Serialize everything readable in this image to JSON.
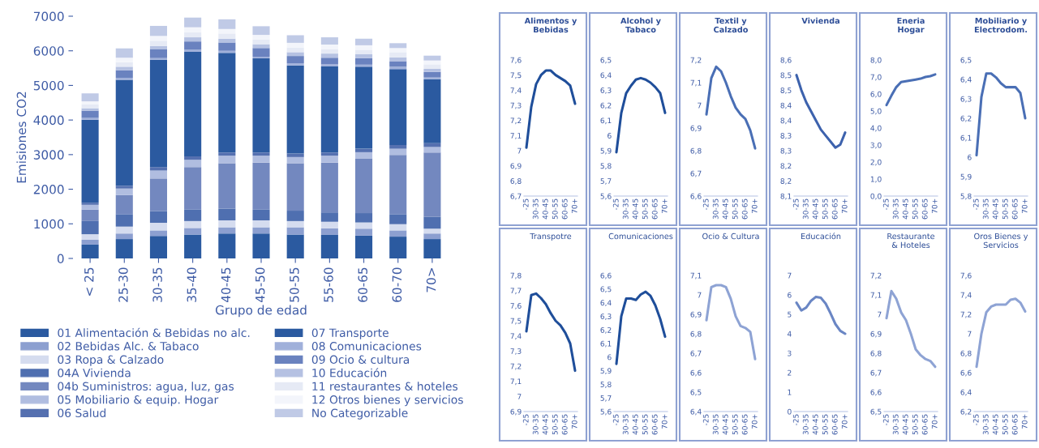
{
  "chart_data": [
    {
      "type": "bar",
      "stacked": true,
      "xlabel": "Grupo de edad",
      "ylabel": "Emisiones CO2",
      "legend": "bottom",
      "grid": false,
      "categories": [
        "< 25",
        "25-30",
        "30-35",
        "35-40",
        "40-45",
        "45-50",
        "50-55",
        "55-60",
        "60-65",
        "60-70",
        "70>"
      ],
      "ylim": [
        0,
        7000
      ],
      "yticks": [
        0,
        1000,
        2000,
        3000,
        4000,
        5000,
        6000,
        7000
      ],
      "series": [
        {
          "name": "01 Alimentación & Bebidas no alc.",
          "color": "#2b5aa0",
          "values": [
            400,
            560,
            650,
            690,
            720,
            720,
            690,
            680,
            660,
            630,
            560
          ]
        },
        {
          "name": "02 Bebidas Alc. & Tabaco",
          "color": "#8c9fd0",
          "values": [
            140,
            160,
            160,
            190,
            180,
            180,
            210,
            190,
            200,
            180,
            160
          ]
        },
        {
          "name": "03 Ropa & Calzado",
          "color": "#d5dcef",
          "values": [
            160,
            200,
            220,
            200,
            200,
            200,
            180,
            190,
            180,
            180,
            140
          ]
        },
        {
          "name": "04A Vivienda",
          "color": "#4f6fb0",
          "values": [
            380,
            360,
            340,
            340,
            340,
            320,
            300,
            270,
            270,
            290,
            340
          ]
        },
        {
          "name": "04b Suministros: agua, luz, gas",
          "color": "#7388bf",
          "values": [
            330,
            550,
            940,
            1220,
            1310,
            1350,
            1370,
            1440,
            1580,
            1710,
            1860
          ]
        },
        {
          "name": "05 Mobiliario & equip. Hogar",
          "color": "#b0bde0",
          "values": [
            140,
            190,
            230,
            210,
            220,
            200,
            180,
            200,
            180,
            180,
            160
          ]
        },
        {
          "name": "06 Salud",
          "color": "#5570b0",
          "values": [
            60,
            80,
            100,
            100,
            90,
            90,
            100,
            90,
            100,
            110,
            110
          ]
        },
        {
          "name": "07 Transporte",
          "color": "#2b5aa0",
          "values": [
            2400,
            3060,
            3100,
            3020,
            2880,
            2720,
            2550,
            2490,
            2370,
            2190,
            1850
          ]
        },
        {
          "name": "08 Comunicaciones",
          "color": "#a0b0da",
          "values": [
            50,
            60,
            50,
            60,
            60,
            50,
            60,
            60,
            60,
            70,
            50
          ]
        },
        {
          "name": "09 Ocio & cultura",
          "color": "#6a82bf",
          "values": [
            210,
            220,
            250,
            240,
            240,
            250,
            210,
            190,
            190,
            160,
            160
          ]
        },
        {
          "name": "10 Educación",
          "color": "#b5c1e2",
          "values": [
            70,
            100,
            100,
            120,
            110,
            110,
            110,
            120,
            110,
            110,
            90
          ]
        },
        {
          "name": "11 restaurantes & hoteles",
          "color": "#e6eaf5",
          "values": [
            110,
            130,
            150,
            150,
            150,
            140,
            130,
            120,
            130,
            150,
            130
          ]
        },
        {
          "name": "12 Otros bienes y servicios",
          "color": "#f3f5fb",
          "values": [
            90,
            130,
            140,
            140,
            130,
            130,
            140,
            140,
            130,
            120,
            110
          ]
        },
        {
          "name": "No Categorizable",
          "color": "#c0cae6",
          "values": [
            230,
            270,
            290,
            280,
            280,
            250,
            220,
            210,
            190,
            140,
            140
          ]
        }
      ]
    },
    {
      "type": "line",
      "title": "Alimentos y\nBebidas",
      "categories": [
        "-25",
        null,
        "30-35",
        null,
        "40-45",
        null,
        "50-55",
        null,
        "60-65",
        null,
        "70+"
      ],
      "ylim": [
        6.7,
        7.6
      ],
      "yticks": [
        {
          "value": 6.7,
          "label": "6,7"
        },
        {
          "value": 6.8,
          "label": "6,8"
        },
        {
          "value": 6.9,
          "label": "6,9"
        },
        {
          "value": 7.0,
          "label": "7"
        },
        {
          "value": 7.1,
          "label": "7,1"
        },
        {
          "value": 7.2,
          "label": "7,2"
        },
        {
          "value": 7.3,
          "label": "7,3"
        },
        {
          "value": 7.4,
          "label": "7,4"
        },
        {
          "value": 7.5,
          "label": "7,5"
        },
        {
          "value": 7.6,
          "label": "7,6"
        }
      ],
      "series": [
        {
          "color": "#1f4e9a",
          "values": [
            7.02,
            7.29,
            7.44,
            7.5,
            7.53,
            7.53,
            7.5,
            7.48,
            7.46,
            7.43,
            7.31
          ]
        }
      ]
    },
    {
      "type": "line",
      "title": "Alcohol y\nTabaco",
      "categories": [
        "-25",
        null,
        "30-35",
        null,
        "40-45",
        null,
        "50-55",
        null,
        "60-65",
        null,
        "70+"
      ],
      "ylim": [
        5.6,
        6.5
      ],
      "yticks": [
        {
          "value": 5.6,
          "label": "5,6"
        },
        {
          "value": 5.7,
          "label": "5,7"
        },
        {
          "value": 5.8,
          "label": "5,8"
        },
        {
          "value": 5.9,
          "label": "5,9"
        },
        {
          "value": 6.0,
          "label": "6"
        },
        {
          "value": 6.1,
          "label": "6,1"
        },
        {
          "value": 6.2,
          "label": "6,2"
        },
        {
          "value": 6.3,
          "label": "6,3"
        },
        {
          "value": 6.4,
          "label": "6,4"
        },
        {
          "value": 6.5,
          "label": "6,5"
        }
      ],
      "series": [
        {
          "color": "#1f4e9a",
          "values": [
            5.89,
            6.15,
            6.28,
            6.33,
            6.37,
            6.38,
            6.37,
            6.35,
            6.32,
            6.28,
            6.15
          ]
        }
      ]
    },
    {
      "type": "line",
      "title": "Textil y\nCalzado",
      "categories": [
        "-25",
        null,
        "30-35",
        null,
        "40-45",
        null,
        "50-55",
        null,
        "60-65",
        null,
        "70+"
      ],
      "ylim": [
        6.6,
        7.2
      ],
      "yticks": [
        {
          "value": 6.6,
          "label": "6,6"
        },
        {
          "value": 6.7,
          "label": "6,7"
        },
        {
          "value": 6.8,
          "label": "6,8"
        },
        {
          "value": 6.9,
          "label": "6,9"
        },
        {
          "value": 7.0,
          "label": "7"
        },
        {
          "value": 7.1,
          "label": "7,1"
        },
        {
          "value": 7.2,
          "label": "7,2"
        }
      ],
      "series": [
        {
          "color": "#4a6fb5",
          "values": [
            6.96,
            7.12,
            7.17,
            7.15,
            7.1,
            7.04,
            6.99,
            6.96,
            6.94,
            6.89,
            6.81
          ]
        }
      ]
    },
    {
      "type": "line",
      "title": "Vivienda",
      "categories": [
        "-25",
        null,
        "30-35",
        null,
        "40-45",
        null,
        "50-55",
        null,
        "60-65",
        null,
        "70+"
      ],
      "ylim": [
        8.15,
        8.6
      ],
      "yticks": [
        {
          "value": 8.15,
          "label": "8,1"
        },
        {
          "value": 8.2,
          "label": "8,2"
        },
        {
          "value": 8.25,
          "label": "8,2"
        },
        {
          "value": 8.3,
          "label": "8,3"
        },
        {
          "value": 8.35,
          "label": "8,3"
        },
        {
          "value": 8.4,
          "label": "8,4"
        },
        {
          "value": 8.45,
          "label": "8,4"
        },
        {
          "value": 8.5,
          "label": "8,5"
        },
        {
          "value": 8.55,
          "label": "8,5"
        },
        {
          "value": 8.6,
          "label": "8,6"
        }
      ],
      "series": [
        {
          "color": "#3d62ad",
          "values": [
            8.55,
            8.5,
            8.46,
            8.43,
            8.4,
            8.37,
            8.35,
            8.33,
            8.31,
            8.32,
            8.36
          ]
        }
      ]
    },
    {
      "type": "line",
      "title": "Eneria\nHogar",
      "categories": [
        "-25",
        null,
        "30-35",
        null,
        "40-45",
        null,
        "50-55",
        null,
        "60-65",
        null,
        "70+"
      ],
      "ylim": [
        0.0,
        8.0
      ],
      "yticks": [
        {
          "value": 0,
          "label": "0,0"
        },
        {
          "value": 1,
          "label": "1,0"
        },
        {
          "value": 2,
          "label": "2,0"
        },
        {
          "value": 3,
          "label": "3,0"
        },
        {
          "value": 4,
          "label": "4,0"
        },
        {
          "value": 5,
          "label": "5,0"
        },
        {
          "value": 6,
          "label": "6,0"
        },
        {
          "value": 7,
          "label": "7,0"
        },
        {
          "value": 8,
          "label": "8,0"
        }
      ],
      "series": [
        {
          "color": "#4a6fb5",
          "values": [
            5.35,
            5.9,
            6.4,
            6.7,
            6.75,
            6.8,
            6.85,
            6.9,
            7.0,
            7.05,
            7.15
          ]
        }
      ]
    },
    {
      "type": "line",
      "title": "Mobiliario y\nElectrodom.",
      "categories": [
        "-25",
        null,
        "30-35",
        null,
        "40-45",
        null,
        "50-55",
        null,
        "60-65",
        null,
        "70+"
      ],
      "ylim": [
        5.8,
        6.5
      ],
      "yticks": [
        {
          "value": 5.8,
          "label": "5,8"
        },
        {
          "value": 5.9,
          "label": "5,9"
        },
        {
          "value": 6.0,
          "label": "6"
        },
        {
          "value": 6.1,
          "label": "6,1"
        },
        {
          "value": 6.2,
          "label": "6,2"
        },
        {
          "value": 6.3,
          "label": "6,3"
        },
        {
          "value": 6.4,
          "label": "6,4"
        },
        {
          "value": 6.5,
          "label": "6,5"
        }
      ],
      "series": [
        {
          "color": "#4a6fb5",
          "values": [
            6.01,
            6.31,
            6.43,
            6.43,
            6.41,
            6.38,
            6.36,
            6.36,
            6.36,
            6.33,
            6.2
          ]
        }
      ]
    },
    {
      "type": "line",
      "title": "Transpotre",
      "categories": [
        "-25",
        null,
        "30-35",
        null,
        "40-45",
        null,
        "50-55",
        null,
        "60-65",
        null,
        "70+"
      ],
      "ylim": [
        6.9,
        7.8
      ],
      "yticks": [
        {
          "value": 6.9,
          "label": "6,9"
        },
        {
          "value": 7.0,
          "label": "7"
        },
        {
          "value": 7.1,
          "label": "7,1"
        },
        {
          "value": 7.2,
          "label": "7,2"
        },
        {
          "value": 7.3,
          "label": "7,3"
        },
        {
          "value": 7.4,
          "label": "7,4"
        },
        {
          "value": 7.5,
          "label": "7,5"
        },
        {
          "value": 7.6,
          "label": "7,6"
        },
        {
          "value": 7.7,
          "label": "7,7"
        },
        {
          "value": 7.8,
          "label": "7,8"
        }
      ],
      "series": [
        {
          "color": "#1f4e9a",
          "values": [
            7.43,
            7.67,
            7.68,
            7.65,
            7.61,
            7.55,
            7.5,
            7.47,
            7.42,
            7.35,
            7.17
          ]
        }
      ]
    },
    {
      "type": "line",
      "title": "Comunicaciones",
      "categories": [
        "-25",
        null,
        "30-35",
        null,
        "40-45",
        null,
        "50-55",
        null,
        "60-65",
        null,
        "70+"
      ],
      "ylim": [
        5.6,
        6.6
      ],
      "yticks": [
        {
          "value": 5.6,
          "label": "5,6"
        },
        {
          "value": 5.7,
          "label": "5,7"
        },
        {
          "value": 5.8,
          "label": "5,8"
        },
        {
          "value": 5.9,
          "label": "5,9"
        },
        {
          "value": 6.0,
          "label": "6"
        },
        {
          "value": 6.1,
          "label": "6,1"
        },
        {
          "value": 6.2,
          "label": "6,2"
        },
        {
          "value": 6.3,
          "label": "6,3"
        },
        {
          "value": 6.4,
          "label": "6,4"
        },
        {
          "value": 6.5,
          "label": "6,5"
        },
        {
          "value": 6.6,
          "label": "6,6"
        }
      ],
      "series": [
        {
          "color": "#1f4e9a",
          "values": [
            5.95,
            6.3,
            6.43,
            6.43,
            6.42,
            6.46,
            6.48,
            6.45,
            6.38,
            6.28,
            6.15
          ]
        }
      ]
    },
    {
      "type": "line",
      "title": "Ocio & Cultura",
      "categories": [
        "-25",
        null,
        "30-35",
        null,
        "40-45",
        null,
        "50-55",
        null,
        "60-65",
        null,
        "70+"
      ],
      "ylim": [
        6.4,
        7.1
      ],
      "yticks": [
        {
          "value": 6.4,
          "label": "6,4"
        },
        {
          "value": 6.5,
          "label": "6,5"
        },
        {
          "value": 6.6,
          "label": "6,6"
        },
        {
          "value": 6.7,
          "label": "6,7"
        },
        {
          "value": 6.8,
          "label": "6,8"
        },
        {
          "value": 6.9,
          "label": "6,9"
        },
        {
          "value": 7.0,
          "label": "7"
        },
        {
          "value": 7.1,
          "label": "7,1"
        }
      ],
      "series": [
        {
          "color": "#8ea3d4",
          "values": [
            6.87,
            7.04,
            7.05,
            7.05,
            7.04,
            6.98,
            6.89,
            6.84,
            6.83,
            6.81,
            6.67
          ]
        }
      ]
    },
    {
      "type": "line",
      "title": "Educación",
      "categories": [
        "-25",
        null,
        "30-35",
        null,
        "40-45",
        null,
        "50-55",
        null,
        "60-65",
        null,
        "70+"
      ],
      "ylim": [
        0,
        7
      ],
      "yticks": [
        0,
        1,
        2,
        3,
        4,
        5,
        6,
        7
      ],
      "series": [
        {
          "color": "#6a86c4",
          "values": [
            5.6,
            5.2,
            5.35,
            5.7,
            5.9,
            5.85,
            5.55,
            5.05,
            4.5,
            4.15,
            4.0
          ]
        }
      ]
    },
    {
      "type": "line",
      "title": "Restaurante\n& Hoteles",
      "categories": [
        "-25",
        null,
        "30-35",
        null,
        "40-45",
        null,
        "50-55",
        null,
        "60-65",
        null,
        "70+"
      ],
      "ylim": [
        6.5,
        7.2
      ],
      "yticks": [
        {
          "value": 6.5,
          "label": "6,5"
        },
        {
          "value": 6.6,
          "label": "6,6"
        },
        {
          "value": 6.7,
          "label": "6,7"
        },
        {
          "value": 6.8,
          "label": "6,8"
        },
        {
          "value": 6.9,
          "label": "6,9"
        },
        {
          "value": 7.0,
          "label": "7"
        },
        {
          "value": 7.1,
          "label": "7,1"
        },
        {
          "value": 7.2,
          "label": "7,2"
        }
      ],
      "series": [
        {
          "color": "#8ea3d4",
          "values": [
            6.98,
            7.12,
            7.08,
            7.01,
            6.97,
            6.9,
            6.82,
            6.79,
            6.77,
            6.76,
            6.73
          ]
        }
      ]
    },
    {
      "type": "line",
      "title": "Oros Bienes y\nServicios",
      "categories": [
        "-25",
        null,
        "30-35",
        null,
        "40-45",
        null,
        "50-55",
        null,
        "60-65",
        null,
        "70+"
      ],
      "ylim": [
        6.2,
        7.6
      ],
      "yticks": [
        {
          "value": 6.2,
          "label": "6,2"
        },
        {
          "value": 6.4,
          "label": "6,4"
        },
        {
          "value": 6.6,
          "label": "6,6"
        },
        {
          "value": 6.8,
          "label": "6,8"
        },
        {
          "value": 7.0,
          "label": "7"
        },
        {
          "value": 7.2,
          "label": "7,2"
        },
        {
          "value": 7.4,
          "label": "7,4"
        },
        {
          "value": 7.6,
          "label": "7,6"
        }
      ],
      "series": [
        {
          "color": "#8ea3d4",
          "values": [
            6.66,
            7.0,
            7.22,
            7.28,
            7.3,
            7.3,
            7.3,
            7.35,
            7.36,
            7.32,
            7.23
          ]
        }
      ]
    }
  ]
}
